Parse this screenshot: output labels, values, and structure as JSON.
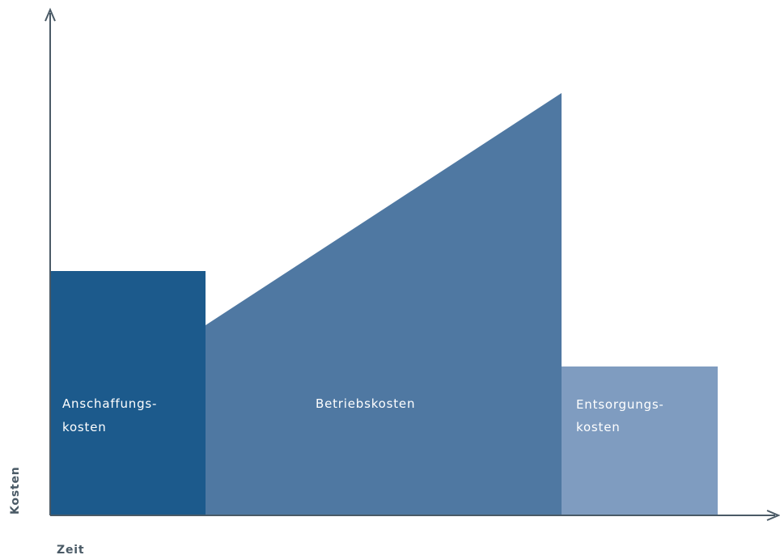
{
  "axes": {
    "x_label": "Zeit",
    "y_label": "Kosten"
  },
  "phases": [
    {
      "label_line1": "Anschaffungs-",
      "label_line2": "kosten",
      "color": "#1c5a8c"
    },
    {
      "label_line1": "Betriebskosten",
      "label_line2": "",
      "color": "#4f78a2"
    },
    {
      "label_line1": "Entsorgungs-",
      "label_line2": "kosten",
      "color": "#7f9cc0"
    }
  ],
  "colors": {
    "axis": "#4a5a66"
  }
}
